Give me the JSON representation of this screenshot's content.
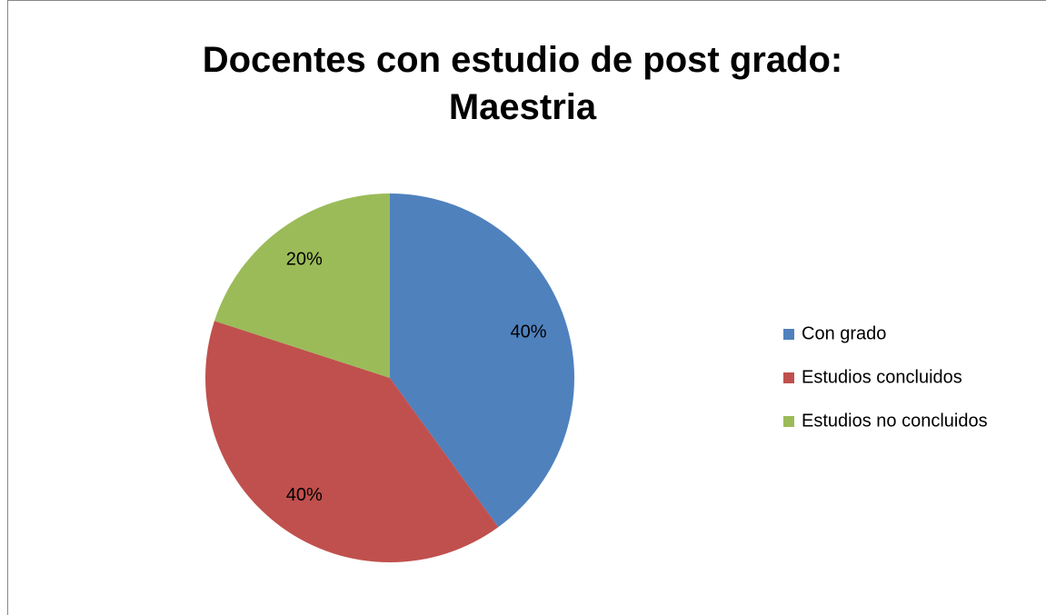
{
  "chart_data": {
    "type": "pie",
    "title": "Docentes con estudio de post grado: Maestria",
    "categories": [
      "Con grado",
      "Estudios concluidos",
      "Estudios no concluidos"
    ],
    "values": [
      40,
      40,
      20
    ],
    "value_labels": [
      "40%",
      "40%",
      "20%"
    ],
    "colors": [
      "#4f81bd",
      "#c0504d",
      "#9bbb59"
    ],
    "legend": "right"
  }
}
